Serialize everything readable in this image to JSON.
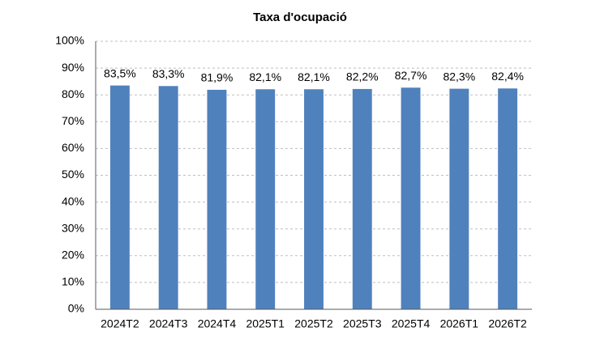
{
  "chart_data": {
    "type": "bar",
    "title": "Taxa d'ocupació",
    "categories": [
      "2024T2",
      "2024T3",
      "2024T4",
      "2025T1",
      "2025T2",
      "2025T3",
      "2025T4",
      "2026T1",
      "2026T2"
    ],
    "values": [
      83.5,
      83.3,
      81.9,
      82.1,
      82.1,
      82.2,
      82.7,
      82.3,
      82.4
    ],
    "value_labels": [
      "83,5%",
      "83,3%",
      "81,9%",
      "82,1%",
      "82,1%",
      "82,2%",
      "82,7%",
      "82,3%",
      "82,4%"
    ],
    "color": "#4f81bd",
    "ylim": [
      0,
      100
    ],
    "yticks": [
      {
        "value": 0,
        "label": "0%"
      },
      {
        "value": 10,
        "label": "10%"
      },
      {
        "value": 20,
        "label": "20%"
      },
      {
        "value": 30,
        "label": "30%"
      },
      {
        "value": 40,
        "label": "40%"
      },
      {
        "value": 50,
        "label": "50%"
      },
      {
        "value": 60,
        "label": "60%"
      },
      {
        "value": 70,
        "label": "70%"
      },
      {
        "value": 80,
        "label": "80%"
      },
      {
        "value": 90,
        "label": "90%"
      },
      {
        "value": 100,
        "label": "100%"
      }
    ],
    "grid": true
  }
}
